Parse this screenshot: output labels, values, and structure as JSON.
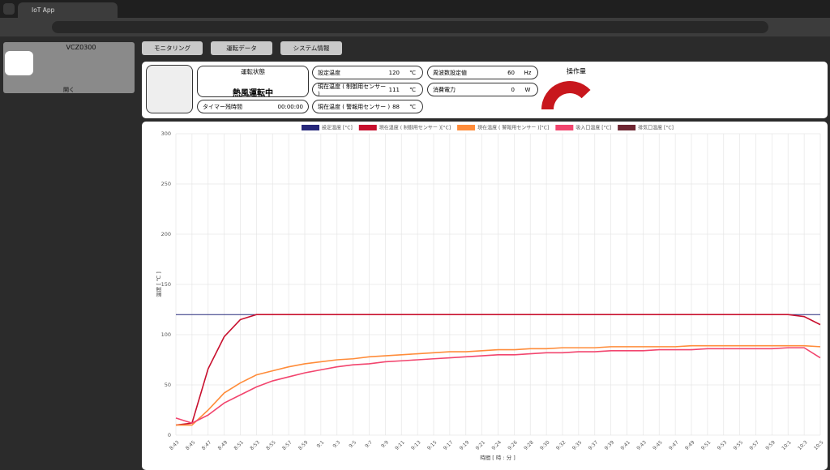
{
  "browser": {
    "tab_title": "IoT App"
  },
  "sidebar": {
    "device": "VCZ0300",
    "open_label": "開く"
  },
  "tabs": [
    "モニタリング",
    "運転データ",
    "システム情報"
  ],
  "status": {
    "state_label": "運転状態",
    "state": "熱風運転中",
    "timer_label": "タイマー残時間",
    "timer": "00:00:00",
    "readings": [
      {
        "label": "設定温度",
        "value": 120,
        "unit": "℃"
      },
      {
        "label": "現在温度 ( 制御用センサー )",
        "value": 111,
        "unit": "℃"
      },
      {
        "label": "現在温度 ( 警報用センサー )",
        "value": 88,
        "unit": "℃"
      },
      {
        "label": "周波数設定値",
        "value": 60,
        "unit": "Hz"
      },
      {
        "label": "消費電力",
        "value": 0,
        "unit": "W"
      }
    ]
  },
  "gauge": {
    "title": "操作量",
    "value": 76,
    "range": [
      0,
      100
    ],
    "color": "#c8171d"
  },
  "chart_data": {
    "type": "line",
    "x_label": "時間 [ 時 : 分 ]",
    "y_label": "温度 [ ℃ ]",
    "categories": [
      "8:43",
      "8:45",
      "8:47",
      "8:49",
      "8:51",
      "8:53",
      "8:55",
      "8:57",
      "8:59",
      "9:1",
      "9:3",
      "9:5",
      "9:7",
      "9:9",
      "9:11",
      "9:13",
      "9:15",
      "9:17",
      "9:19",
      "9:21",
      "9:24",
      "9:26",
      "9:28",
      "9:30",
      "9:32",
      "9:35",
      "9:37",
      "9:39",
      "9:41",
      "9:43",
      "9:45",
      "9:47",
      "9:49",
      "9:51",
      "9:53",
      "9:55",
      "9:57",
      "9:59",
      "10:1",
      "10:3",
      "10:5"
    ],
    "series": [
      {
        "name": "設定温度 [°C]",
        "color": "#27287a",
        "values": [
          120,
          120,
          120,
          120,
          120,
          120,
          120,
          120,
          120,
          120,
          120,
          120,
          120,
          120,
          120,
          120,
          120,
          120,
          120,
          120,
          120,
          120,
          120,
          120,
          120,
          120,
          120,
          120,
          120,
          120,
          120,
          120,
          120,
          120,
          120,
          120,
          120,
          120,
          120,
          120,
          120
        ]
      },
      {
        "name": "現在温度 ( 制御用センサー )[°C]",
        "color": "#c8102e",
        "values": [
          10,
          12,
          66,
          98,
          115,
          120,
          120,
          120,
          120,
          120,
          120,
          120,
          120,
          120,
          120,
          120,
          120,
          120,
          120,
          120,
          120,
          120,
          120,
          120,
          120,
          120,
          120,
          120,
          120,
          120,
          120,
          120,
          120,
          120,
          120,
          120,
          120,
          120,
          120,
          118,
          110
        ]
      },
      {
        "name": "現在温度 ( 警報用センサー )[°C]",
        "color": "#ff8c3a",
        "values": [
          10,
          10,
          25,
          42,
          52,
          60,
          64,
          68,
          71,
          73,
          75,
          76,
          78,
          79,
          80,
          81,
          82,
          83,
          83,
          84,
          85,
          85,
          86,
          86,
          87,
          87,
          87,
          88,
          88,
          88,
          88,
          88,
          89,
          89,
          89,
          89,
          89,
          89,
          89,
          89,
          88
        ]
      },
      {
        "name": "吸入口温度 [°C]",
        "color": "#f2456e",
        "values": [
          17,
          12,
          20,
          32,
          40,
          48,
          54,
          58,
          62,
          65,
          68,
          70,
          71,
          73,
          74,
          75,
          76,
          77,
          78,
          79,
          80,
          80,
          81,
          82,
          82,
          83,
          83,
          84,
          84,
          84,
          85,
          85,
          85,
          86,
          86,
          86,
          86,
          86,
          87,
          87,
          77
        ]
      },
      {
        "name": "排気口温度 [°C]",
        "color": "#6e2632",
        "values": [
          null,
          null,
          null,
          null,
          null,
          null,
          null,
          null,
          null,
          null,
          null,
          null,
          null,
          null,
          null,
          null,
          null,
          null,
          null,
          null,
          null,
          null,
          null,
          null,
          null,
          null,
          null,
          null,
          null,
          null,
          null,
          null,
          null,
          null,
          null,
          null,
          null,
          null,
          null,
          null,
          null
        ]
      }
    ],
    "ylim": [
      0,
      300
    ],
    "yticks": [
      0,
      50,
      100,
      150,
      200,
      250,
      300
    ],
    "grid": true,
    "legend": "top"
  }
}
